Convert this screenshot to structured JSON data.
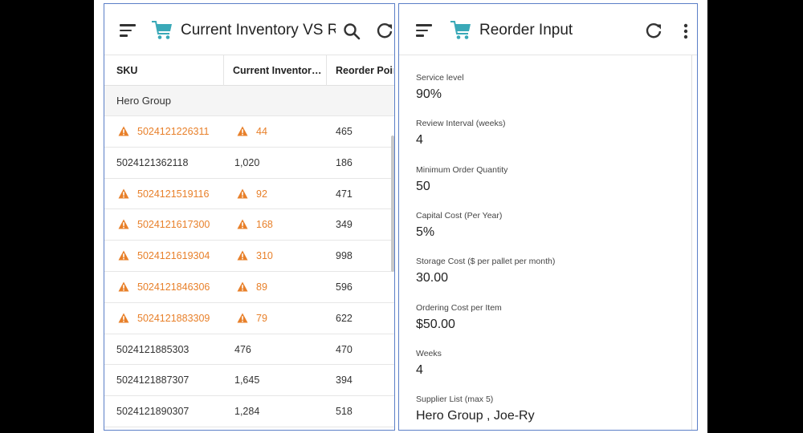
{
  "left_panel": {
    "title": "Current Inventory VS ROP",
    "columns": [
      "SKU",
      "Current Inventory...",
      "Reorder Point"
    ],
    "group": "Hero Group",
    "rows": [
      {
        "sku": "5024121226311",
        "inventory": "44",
        "reorder": "465",
        "alert": true
      },
      {
        "sku": "5024121362118",
        "inventory": "1,020",
        "reorder": "186",
        "alert": false
      },
      {
        "sku": "5024121519116",
        "inventory": "92",
        "reorder": "471",
        "alert": true
      },
      {
        "sku": "5024121617300",
        "inventory": "168",
        "reorder": "349",
        "alert": true
      },
      {
        "sku": "5024121619304",
        "inventory": "310",
        "reorder": "998",
        "alert": true
      },
      {
        "sku": "5024121846306",
        "inventory": "89",
        "reorder": "596",
        "alert": true
      },
      {
        "sku": "5024121883309",
        "inventory": "79",
        "reorder": "622",
        "alert": true
      },
      {
        "sku": "5024121885303",
        "inventory": "476",
        "reorder": "470",
        "alert": false
      },
      {
        "sku": "5024121887307",
        "inventory": "1,645",
        "reorder": "394",
        "alert": false
      },
      {
        "sku": "5024121890307",
        "inventory": "1,284",
        "reorder": "518",
        "alert": false
      }
    ],
    "icons": {
      "menu": "menu-icon",
      "cart": "cart-icon",
      "search": "search-icon",
      "refresh": "refresh-icon",
      "alert": "warning-icon"
    }
  },
  "right_panel": {
    "title": "Reorder Input",
    "fields": [
      {
        "label": "Service level",
        "value": "90%"
      },
      {
        "label": "Review Interval (weeks)",
        "value": "4"
      },
      {
        "label": "Minimum Order Quantity",
        "value": "50"
      },
      {
        "label": "Capital Cost (Per Year)",
        "value": "5%"
      },
      {
        "label": "Storage Cost ($ per pallet per month)",
        "value": "30.00"
      },
      {
        "label": "Ordering Cost per Item",
        "value": "$50.00"
      },
      {
        "label": "Weeks",
        "value": "4"
      },
      {
        "label": "Supplier List (max 5)",
        "value": "Hero Group , Joe-Ry"
      }
    ],
    "icons": {
      "menu": "menu-icon",
      "cart": "cart-icon",
      "refresh": "refresh-icon",
      "more": "more-vert-icon"
    }
  },
  "colors": {
    "alert": "#e8802a",
    "cart": "#3aa9b8",
    "border": "#5b7fc7"
  }
}
